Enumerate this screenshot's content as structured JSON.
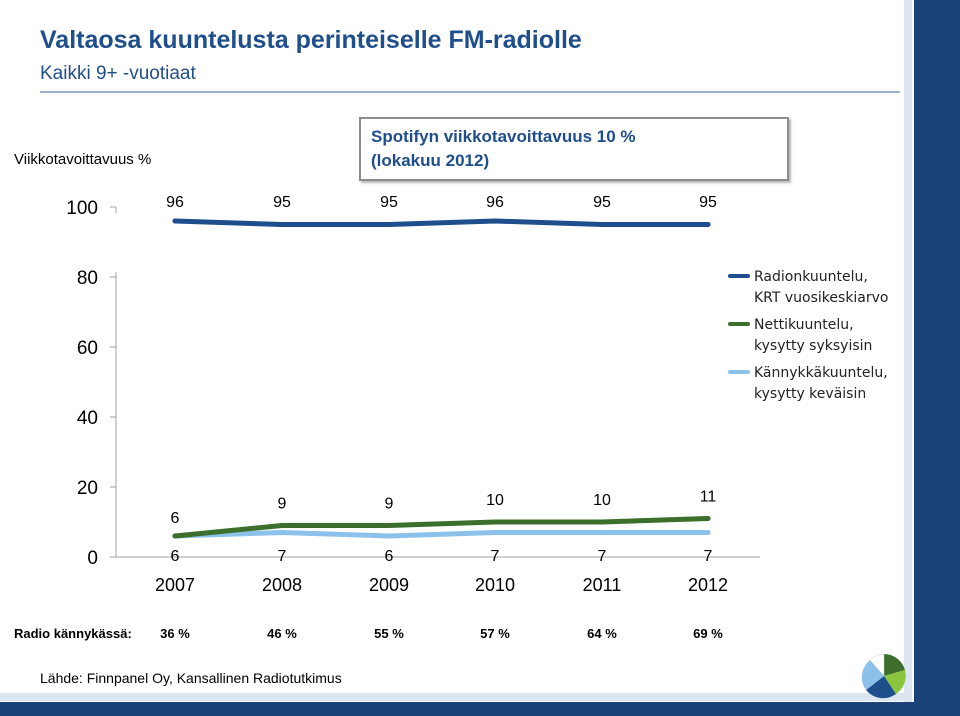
{
  "header": {
    "title": "Valtaosa kuuntelusta perinteiselle FM-radiolle",
    "subtitle": "Kaikki 9+ -vuotiaat"
  },
  "y_axis_label": "Viikkotavoittavuus %",
  "annotation": {
    "line1": "Spotifyn viikkotavoittavuus  10 %",
    "line2": "(lokakuu 2012)"
  },
  "chart_data": {
    "type": "line",
    "categories": [
      "2007",
      "2008",
      "2009",
      "2010",
      "2011",
      "2012"
    ],
    "series": [
      {
        "name": "Radionkuuntelu, KRT vuosikeskiarvo",
        "values": [
          96,
          95,
          95,
          96,
          95,
          95
        ],
        "color": "#1f4e8c"
      },
      {
        "name": "Nettikuuntelu, kysytty syksyisin",
        "values": [
          6,
          9,
          9,
          10,
          10,
          11
        ],
        "color": "#3c6e2c"
      },
      {
        "name": "Kännykkäkuuntelu, kysytty keväisin",
        "values": [
          6,
          7,
          6,
          7,
          7,
          7
        ],
        "color": "#8cc1eb"
      }
    ],
    "yticks": [
      "100",
      "80",
      "60",
      "40",
      "20",
      "0"
    ],
    "axis_break": "between 100 and 80",
    "legend_position": "right",
    "grid": false
  },
  "legend": [
    {
      "line1": "Radionkuuntelu,",
      "line2": "KRT vuosikeskiarvo",
      "color": "#1f4e8c"
    },
    {
      "line1": "Nettikuuntelu,",
      "line2": "kysytty syksyisin",
      "color": "#3c6e2c"
    },
    {
      "line1": "Kännykkäkuuntelu,",
      "line2": "kysytty keväisin",
      "color": "#8cc1eb"
    }
  ],
  "radio_phone": {
    "label": "Radio kännykässä:",
    "values": [
      "36 %",
      "46 %",
      "55 %",
      "57 %",
      "64 %",
      "69 %"
    ]
  },
  "source": "Lähde: Finnpanel Oy, Kansallinen Radiotutkimus",
  "logo_icon": "circle-segments-logo-icon"
}
